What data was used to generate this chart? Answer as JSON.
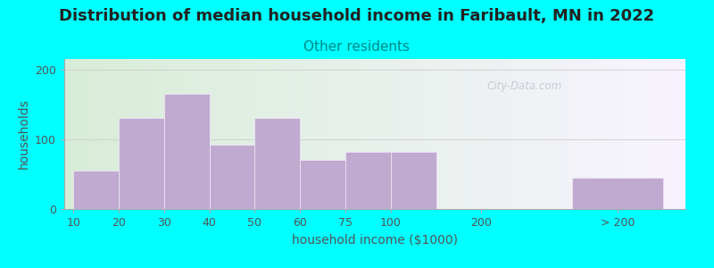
{
  "title": "Distribution of median household income in Faribault, MN in 2022",
  "subtitle": "Other residents",
  "xlabel": "household income ($1000)",
  "ylabel": "households",
  "background_outer": "#00ffff",
  "bar_color": "#c0aad0",
  "bar_edge_color": "#e8e0f0",
  "watermark": "City-Data.com",
  "tick_labels": [
    "10",
    "20",
    "30",
    "40",
    "50",
    "60",
    "75",
    "100",
    "200",
    "> 200"
  ],
  "tick_positions": [
    0,
    1,
    2,
    3,
    4,
    5,
    6,
    7,
    9,
    12
  ],
  "bar_lefts": [
    0,
    1,
    2,
    3,
    4,
    5,
    6,
    7,
    10,
    11
  ],
  "bar_widths": [
    1,
    1,
    1,
    1,
    1,
    1,
    1,
    1,
    1,
    2
  ],
  "bar_values": [
    55,
    130,
    165,
    92,
    130,
    70,
    82,
    82,
    0,
    45
  ],
  "xlim": [
    -0.2,
    13.5
  ],
  "ylim": [
    0,
    215
  ],
  "yticks": [
    0,
    100,
    200
  ],
  "title_fontsize": 13,
  "subtitle_fontsize": 11,
  "axis_label_fontsize": 10,
  "tick_fontsize": 9,
  "subtitle_color": "#008888",
  "title_color": "#222222",
  "axis_label_color": "#555555",
  "tick_color": "#555555",
  "grid_color": "#cccccc",
  "bg_color_left": "#ddeedd",
  "bg_color_right": "#f5f0ff"
}
